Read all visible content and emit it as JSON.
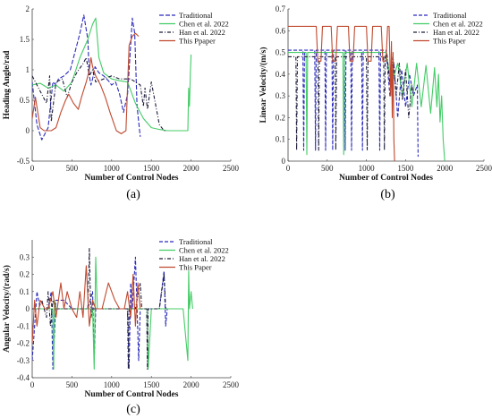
{
  "chart_data": [
    {
      "id": "a",
      "type": "line",
      "caption": "(a)",
      "xlabel": "Number of Control Nodes",
      "ylabel": "Heading Angle/rad",
      "xlim": [
        0,
        2500
      ],
      "ylim": [
        -0.5,
        2
      ],
      "xticks": [
        "0",
        "500",
        "1000",
        "1500",
        "2000",
        "2500"
      ],
      "yticks": [
        "-0.5",
        "0",
        "0.5",
        "1",
        "1.5",
        "2"
      ],
      "legend_position": "top-right",
      "series": [
        {
          "name": "Traditional",
          "color": "#2b2bbd",
          "dash": "5,2",
          "x": [
            0,
            60,
            120,
            200,
            260,
            300,
            330,
            400,
            480,
            540,
            600,
            650,
            700,
            720,
            740,
            760,
            790,
            840,
            900,
            960,
            1000,
            1050,
            1100,
            1150,
            1200,
            1230,
            1260,
            1290,
            1320,
            1360
          ],
          "y": [
            0.8,
            0.1,
            -0.15,
            0.05,
            0.8,
            0.75,
            0.85,
            0.9,
            1.0,
            1.3,
            1.6,
            1.9,
            1.5,
            0.9,
            0.75,
            0.85,
            1.05,
            0.95,
            0.9,
            0.82,
            0.75,
            0.8,
            0.6,
            0.3,
            0.6,
            1.2,
            1.85,
            1.6,
            0.4,
            -0.1
          ]
        },
        {
          "name": "Chen et al. 2022",
          "color": "#44cc66",
          "dash": "",
          "x": [
            0,
            100,
            200,
            300,
            400,
            500,
            600,
            700,
            760,
            800,
            840,
            900,
            1000,
            1100,
            1200,
            1300,
            1400,
            1500,
            1600,
            1700,
            1800,
            1900,
            1960,
            1970,
            1980,
            1990,
            2000
          ],
          "y": [
            0.75,
            0.78,
            0.7,
            0.75,
            0.65,
            0.8,
            1.2,
            1.5,
            1.75,
            1.85,
            1.2,
            0.95,
            0.85,
            0.82,
            0.8,
            0.45,
            0.2,
            0.05,
            0.02,
            0.0,
            0.0,
            0.0,
            0.0,
            0.7,
            0.4,
            0.9,
            1.25
          ]
        },
        {
          "name": "Han et al. 2022",
          "color": "#1c1c3a",
          "dash": "4,2,1,2",
          "x": [
            0,
            80,
            180,
            220,
            240,
            300,
            380,
            440,
            500,
            560,
            640,
            680,
            720,
            760,
            800,
            900,
            1000,
            1100,
            1180,
            1240,
            1300,
            1360,
            1400,
            1420,
            1450,
            1500,
            1600,
            1660,
            1680
          ],
          "y": [
            0.9,
            0.7,
            0.45,
            0.9,
            0.15,
            0.8,
            0.85,
            0.55,
            0.8,
            0.95,
            1.1,
            1.2,
            0.9,
            1.0,
            0.8,
            0.85,
            0.9,
            0.85,
            0.85,
            0.85,
            0.8,
            0.75,
            0.4,
            0.7,
            0.35,
            0.8,
            0.1,
            0.0,
            0.0
          ]
        },
        {
          "name": "This Ppaper",
          "color": "#c0492e",
          "dash": "",
          "x": [
            0,
            40,
            100,
            150,
            200,
            240,
            300,
            360,
            420,
            460,
            520,
            580,
            620,
            680,
            720,
            740,
            760,
            800,
            860,
            920,
            980,
            1060,
            1120,
            1180,
            1220,
            1260,
            1300,
            1340
          ],
          "y": [
            0.2,
            0.55,
            0.05,
            0.0,
            0.0,
            0.0,
            0.05,
            0.3,
            0.5,
            0.6,
            0.45,
            0.35,
            0.55,
            0.8,
            1.0,
            1.2,
            1.05,
            0.9,
            0.75,
            0.55,
            0.3,
            0.0,
            -0.05,
            0.0,
            1.4,
            1.55,
            1.6,
            1.55
          ]
        }
      ]
    },
    {
      "id": "b",
      "type": "line",
      "caption": "(b)",
      "xlabel": "Number of Control Nodes",
      "ylabel": "Linear Velocity/(m/s)",
      "xlim": [
        0,
        2500
      ],
      "ylim": [
        0,
        0.7
      ],
      "xticks": [
        "0",
        "500",
        "1000",
        "1500",
        "2000",
        "2500"
      ],
      "yticks": [
        "0",
        "0.1",
        "0.2",
        "0.3",
        "0.4",
        "0.5",
        "0.6",
        "0.7"
      ],
      "legend_position": "top-right",
      "series": [
        {
          "name": "Traditional",
          "color": "#2b2bbd",
          "dash": "4,2",
          "x": [
            0,
            190,
            200,
            210,
            340,
            350,
            360,
            470,
            480,
            490,
            560,
            570,
            580,
            720,
            730,
            740,
            800,
            810,
            820,
            940,
            950,
            960,
            1160,
            1170,
            1180,
            1250,
            1300,
            1350,
            1400,
            1450,
            1500,
            1550,
            1600,
            1650,
            1660
          ],
          "y": [
            0.51,
            0.51,
            0.05,
            0.51,
            0.51,
            0.05,
            0.51,
            0.51,
            0.05,
            0.51,
            0.51,
            0.05,
            0.51,
            0.51,
            0.05,
            0.51,
            0.51,
            0.05,
            0.51,
            0.51,
            0.05,
            0.51,
            0.51,
            0.05,
            0.51,
            0.51,
            0.3,
            0.45,
            0.2,
            0.42,
            0.25,
            0.4,
            0.3,
            0.35,
            0.02
          ]
        },
        {
          "name": "Chen et al. 2022",
          "color": "#44cc66",
          "dash": "",
          "x": [
            0,
            230,
            240,
            250,
            700,
            710,
            720,
            1250,
            1320,
            1400,
            1460,
            1520,
            1580,
            1640,
            1700,
            1760,
            1820,
            1870,
            1900,
            1920,
            1940,
            1960,
            1980,
            2000
          ],
          "y": [
            0.5,
            0.5,
            0.03,
            0.5,
            0.5,
            0.03,
            0.5,
            0.5,
            0.35,
            0.45,
            0.3,
            0.45,
            0.25,
            0.45,
            0.25,
            0.44,
            0.22,
            0.43,
            0.25,
            0.4,
            0.18,
            0.3,
            0.1,
            0.0
          ]
        },
        {
          "name": "Han et al. 2022",
          "color": "#1c1c3a",
          "dash": "4,2,1,2",
          "x": [
            0,
            100,
            110,
            120,
            380,
            390,
            400,
            600,
            610,
            620,
            1000,
            1010,
            1020,
            1220,
            1230,
            1240,
            1260,
            1300,
            1340,
            1380,
            1420,
            1460,
            1500,
            1540,
            1580,
            1600
          ],
          "y": [
            0.48,
            0.48,
            0.05,
            0.48,
            0.48,
            0.05,
            0.48,
            0.48,
            0.05,
            0.48,
            0.48,
            0.05,
            0.48,
            0.48,
            0.05,
            0.48,
            0.5,
            0.35,
            0.48,
            0.3,
            0.45,
            0.28,
            0.42,
            0.2,
            0.35,
            0.3
          ]
        },
        {
          "name": "This Paper",
          "color": "#c0492e",
          "dash": "",
          "x": [
            0,
            360,
            380,
            420,
            440,
            550,
            570,
            610,
            630,
            770,
            790,
            830,
            850,
            1000,
            1020,
            1060,
            1080,
            1190,
            1210,
            1250,
            1270,
            1290,
            1310,
            1320,
            1330,
            1340,
            1350,
            1360
          ],
          "y": [
            0.62,
            0.62,
            0.46,
            0.46,
            0.62,
            0.62,
            0.46,
            0.46,
            0.62,
            0.62,
            0.46,
            0.46,
            0.62,
            0.62,
            0.46,
            0.46,
            0.62,
            0.62,
            0.46,
            0.46,
            0.62,
            0.62,
            0.3,
            0.55,
            0.2,
            0.5,
            0.1,
            0.0
          ]
        }
      ]
    },
    {
      "id": "c",
      "type": "line",
      "caption": "(c)",
      "xlabel": "Number of Control Nodes",
      "ylabel": "Angular Velocity/(rad/s)",
      "xlim": [
        0,
        2500
      ],
      "ylim": [
        -0.4,
        0.4
      ],
      "xticks": [
        "0",
        "500",
        "1000",
        "1500",
        "2000",
        "2500"
      ],
      "yticks": [
        "-0.4",
        "-0.3",
        "-0.2",
        "-0.1",
        "0",
        "0.1",
        "0.2",
        "0.3"
      ],
      "legend_position": "top-right",
      "series": [
        {
          "name": "Traditional",
          "color": "#2b2bbd",
          "dash": "4,2",
          "x": [
            0,
            30,
            60,
            100,
            200,
            240,
            260,
            300,
            400,
            500,
            600,
            700,
            760,
            780,
            800,
            900,
            1000,
            1100,
            1200,
            1220,
            1240,
            1260,
            1300,
            1340,
            1360,
            1400,
            1500,
            1600,
            1660,
            1680,
            1700
          ],
          "y": [
            -0.3,
            -0.1,
            0.1,
            0.0,
            0.0,
            0.1,
            -0.35,
            0.05,
            0.05,
            0.0,
            0.0,
            0.0,
            0.1,
            -0.3,
            0.0,
            0.0,
            0.0,
            0.0,
            0.0,
            -0.35,
            0.15,
            0.0,
            0.3,
            -0.3,
            0.0,
            0.0,
            0.0,
            0.0,
            0.22,
            -0.1,
            0.0
          ]
        },
        {
          "name": "Chen et al. 2022",
          "color": "#44cc66",
          "dash": "",
          "x": [
            0,
            100,
            200,
            260,
            270,
            280,
            300,
            500,
            700,
            760,
            780,
            800,
            820,
            1000,
            1200,
            1400,
            1450,
            1460,
            1500,
            1700,
            1900,
            1960,
            1970,
            1980,
            2000,
            2020
          ],
          "y": [
            0.0,
            0.0,
            0.0,
            0.0,
            -0.35,
            0.05,
            0.0,
            0.0,
            0.0,
            0.0,
            -0.35,
            0.3,
            0.0,
            0.0,
            0.0,
            0.0,
            0.0,
            -0.35,
            0.0,
            0.0,
            0.0,
            -0.3,
            0.22,
            0.0,
            0.1,
            0.0
          ]
        },
        {
          "name": "Han et al. 2022",
          "color": "#1c1c3a",
          "dash": "4,2,1,2",
          "x": [
            0,
            80,
            120,
            180,
            200,
            230,
            260,
            300,
            400,
            500,
            600,
            700,
            720,
            740,
            760,
            800,
            900,
            1000,
            1100,
            1200,
            1210,
            1220,
            1300,
            1360,
            1380,
            1400,
            1440,
            1450,
            1460,
            1500,
            1600,
            1660,
            1680
          ],
          "y": [
            0.0,
            0.0,
            0.05,
            -0.05,
            0.1,
            -0.1,
            0.05,
            0.0,
            0.0,
            0.0,
            0.0,
            0.0,
            0.35,
            -0.05,
            0.0,
            0.0,
            0.0,
            0.0,
            0.0,
            0.0,
            -0.35,
            0.0,
            0.0,
            0.15,
            0.0,
            0.0,
            0.0,
            -0.35,
            0.0,
            0.0,
            0.0,
            0.2,
            0.0
          ]
        },
        {
          "name": "This Paper",
          "color": "#c0492e",
          "dash": "",
          "x": [
            0,
            30,
            60,
            100,
            160,
            200,
            260,
            300,
            360,
            400,
            440,
            500,
            560,
            600,
            640,
            680,
            720,
            760,
            800,
            880,
            960,
            1040,
            1100,
            1160,
            1200,
            1240,
            1270,
            1300,
            1330,
            1360
          ],
          "y": [
            -0.2,
            0.05,
            -0.1,
            0.05,
            0.0,
            0.0,
            0.1,
            -0.05,
            0.15,
            0.0,
            0.1,
            0.0,
            -0.05,
            0.1,
            -0.05,
            0.25,
            -0.1,
            0.05,
            0.0,
            0.0,
            0.15,
            0.05,
            0.0,
            0.0,
            0.1,
            -0.05,
            0.2,
            -0.1,
            0.15,
            0.0
          ]
        }
      ]
    }
  ]
}
